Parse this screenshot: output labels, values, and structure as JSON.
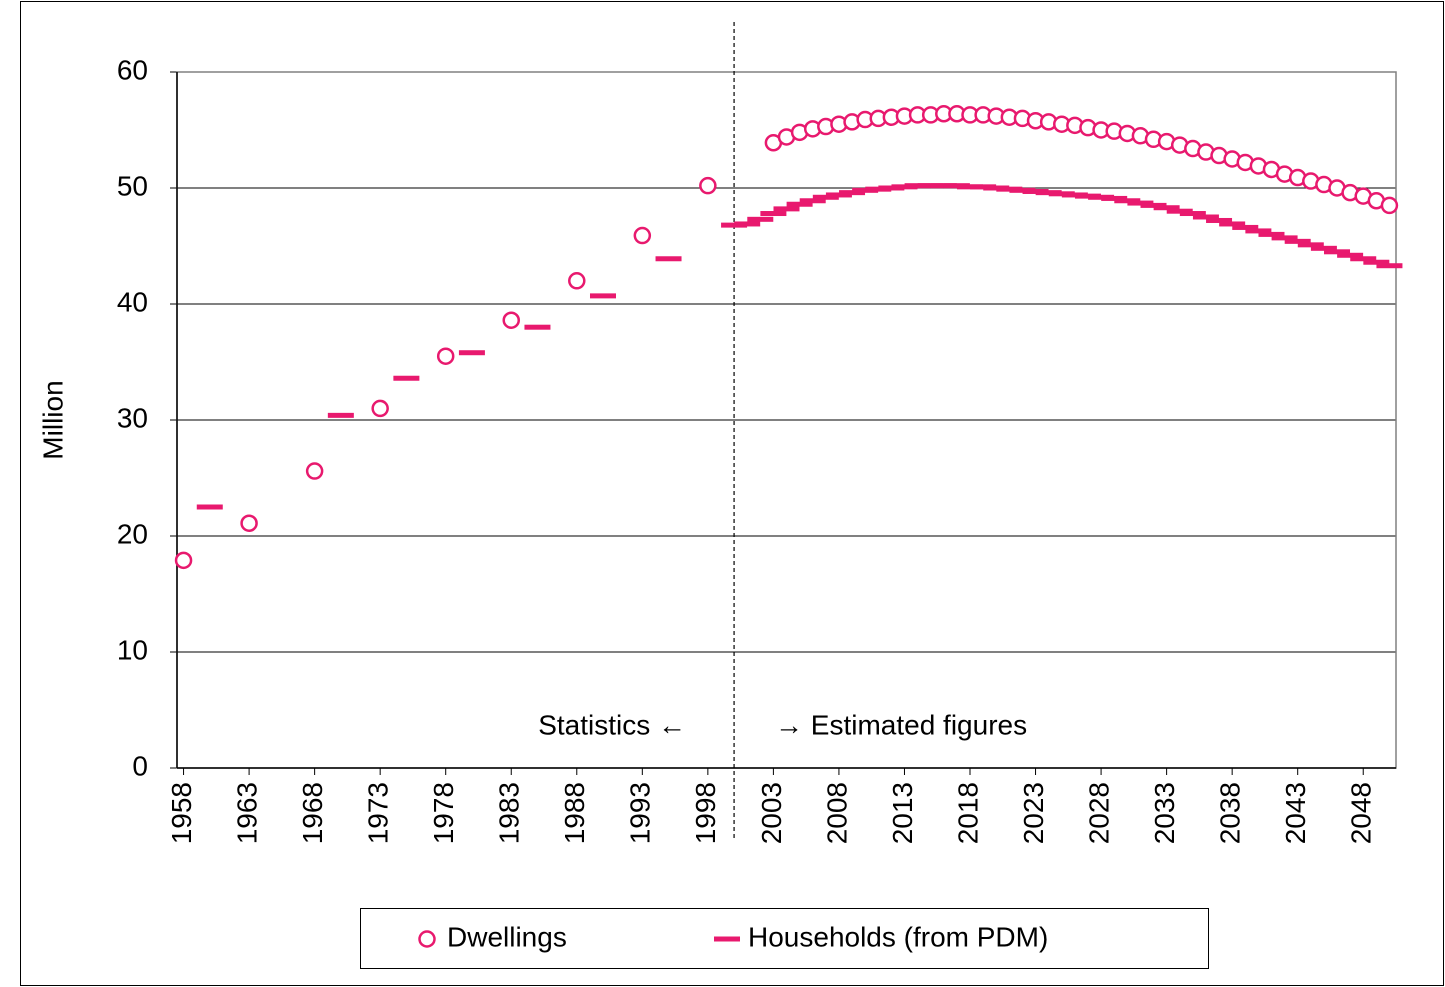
{
  "chart_data": {
    "type": "scatter",
    "ylabel": "Million",
    "xlim": [
      1957.5,
      2050.5
    ],
    "ylim": [
      0,
      60
    ],
    "yticks": [
      0,
      10,
      20,
      30,
      40,
      50,
      60
    ],
    "xticks": [
      1958,
      1963,
      1968,
      1973,
      1978,
      1983,
      1988,
      1993,
      1998,
      2003,
      2008,
      2013,
      2018,
      2023,
      2028,
      2033,
      2038,
      2043,
      2048
    ],
    "grid": true,
    "divider_x": 2000,
    "annotations": [
      "Statistics ←",
      "→ Estimated figures"
    ],
    "legend": "bottom",
    "series": [
      {
        "name": "Dwellings",
        "color": "#e8196e",
        "marker": "circle",
        "x": [
          1958,
          1963,
          1968,
          1973,
          1978,
          1983,
          1988,
          1993,
          1998,
          2003,
          2004,
          2005,
          2006,
          2007,
          2008,
          2009,
          2010,
          2011,
          2012,
          2013,
          2014,
          2015,
          2016,
          2017,
          2018,
          2019,
          2020,
          2021,
          2022,
          2023,
          2024,
          2025,
          2026,
          2027,
          2028,
          2029,
          2030,
          2031,
          2032,
          2033,
          2034,
          2035,
          2036,
          2037,
          2038,
          2039,
          2040,
          2041,
          2042,
          2043,
          2044,
          2045,
          2046,
          2047,
          2048,
          2049,
          2050
        ],
        "values": [
          17.9,
          21.1,
          25.6,
          31.0,
          35.5,
          38.6,
          42.0,
          45.9,
          50.2,
          53.9,
          54.4,
          54.8,
          55.1,
          55.3,
          55.5,
          55.7,
          55.9,
          56.0,
          56.1,
          56.2,
          56.3,
          56.3,
          56.4,
          56.4,
          56.3,
          56.3,
          56.2,
          56.1,
          56.0,
          55.8,
          55.7,
          55.5,
          55.4,
          55.2,
          55.0,
          54.9,
          54.7,
          54.5,
          54.2,
          54.0,
          53.7,
          53.4,
          53.1,
          52.8,
          52.5,
          52.2,
          51.9,
          51.6,
          51.2,
          50.9,
          50.6,
          50.3,
          50.0,
          49.6,
          49.3,
          48.9,
          48.5
        ]
      },
      {
        "name": "Households (from PDM)",
        "color": "#e8196e",
        "marker": "dash",
        "x": [
          1960,
          1970,
          1975,
          1980,
          1985,
          1990,
          1995,
          2000,
          2001,
          2002,
          2003,
          2004,
          2005,
          2006,
          2007,
          2008,
          2009,
          2010,
          2011,
          2012,
          2013,
          2014,
          2015,
          2016,
          2017,
          2018,
          2019,
          2020,
          2021,
          2022,
          2023,
          2024,
          2025,
          2026,
          2027,
          2028,
          2029,
          2030,
          2031,
          2032,
          2033,
          2034,
          2035,
          2036,
          2037,
          2038,
          2039,
          2040,
          2041,
          2042,
          2043,
          2044,
          2045,
          2046,
          2047,
          2048,
          2049,
          2050
        ],
        "values": [
          22.5,
          30.4,
          33.6,
          35.8,
          38.0,
          40.7,
          43.9,
          46.8,
          46.9,
          47.3,
          47.8,
          48.2,
          48.6,
          48.9,
          49.2,
          49.4,
          49.6,
          49.8,
          49.9,
          50.0,
          50.1,
          50.2,
          50.2,
          50.2,
          50.2,
          50.1,
          50.1,
          50.0,
          49.9,
          49.8,
          49.7,
          49.6,
          49.5,
          49.4,
          49.3,
          49.2,
          49.1,
          48.9,
          48.7,
          48.5,
          48.3,
          48.0,
          47.8,
          47.5,
          47.2,
          46.9,
          46.6,
          46.3,
          46.0,
          45.7,
          45.4,
          45.1,
          44.8,
          44.5,
          44.2,
          43.9,
          43.6,
          43.3
        ]
      }
    ]
  }
}
